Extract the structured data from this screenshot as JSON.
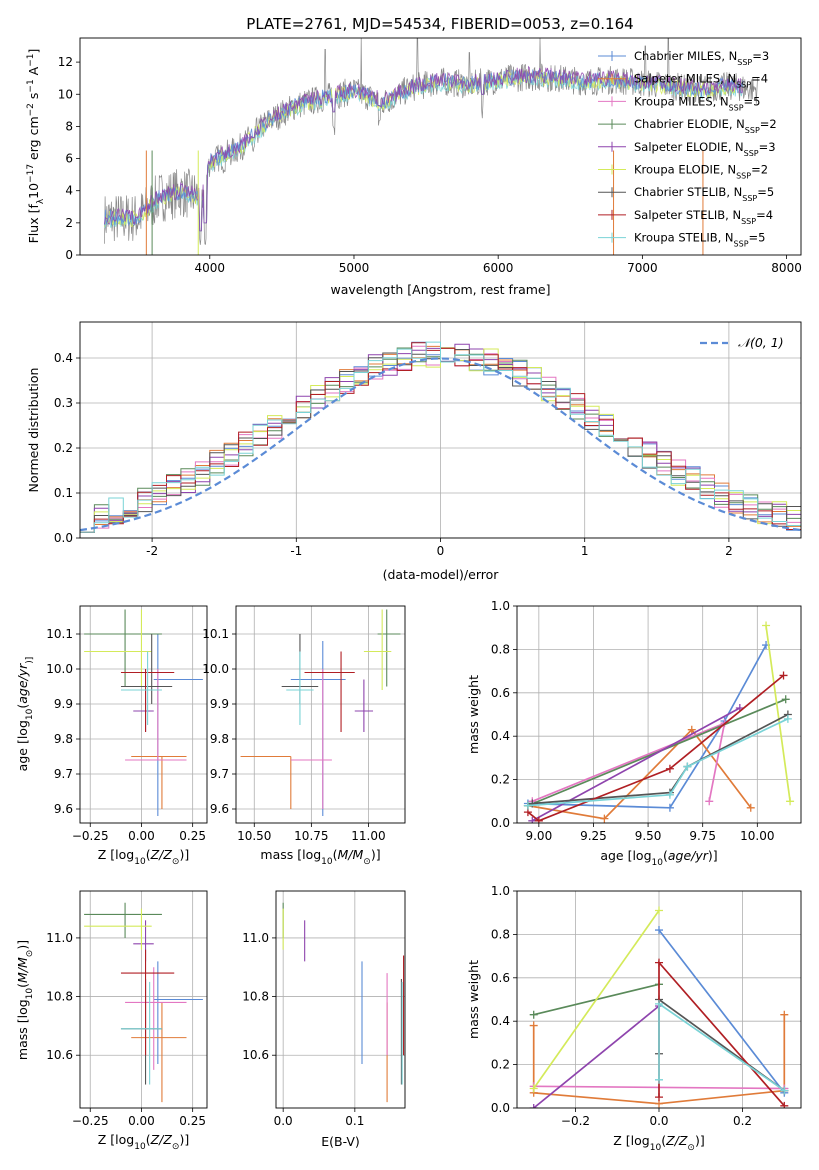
{
  "figure_title": "PLATE=2761, MJD=54534, FIBERID=0053, z=0.164",
  "colors": {
    "chabrier_miles": "#5b8bd6",
    "salpeter_miles": "#e07b39",
    "kroupa_miles": "#e377c2",
    "chabrier_elodie": "#5a8a5a",
    "salpeter_elodie": "#8e44ad",
    "kroupa_elodie": "#d4ea5a",
    "chabrier_stelib": "#555555",
    "salpeter_stelib": "#b01f24",
    "kroupa_stelib": "#7ad3d6",
    "spectrum": "#888888",
    "normal": "#5b8bd6"
  },
  "legend_series": [
    {
      "name": "Chabrier MILES, N$_{SSP}$=3",
      "label": "Chabrier MILES, N",
      "sub": "SSP",
      "eq": "=3",
      "color_key": "chabrier_miles"
    },
    {
      "name": "Salpeter MILES, N$_{SSP}$=4",
      "label": "Salpeter MILES, N",
      "sub": "SSP",
      "eq": "=4",
      "color_key": "salpeter_miles"
    },
    {
      "name": "Kroupa MILES, N$_{SSP}$=5",
      "label": "Kroupa MILES, N",
      "sub": "SSP",
      "eq": "=5",
      "color_key": "kroupa_miles"
    },
    {
      "name": "Chabrier ELODIE, N$_{SSP}$=2",
      "label": "Chabrier ELODIE, N",
      "sub": "SSP",
      "eq": "=2",
      "color_key": "chabrier_elodie"
    },
    {
      "name": "Salpeter ELODIE, N$_{SSP}$=3",
      "label": "Salpeter ELODIE, N",
      "sub": "SSP",
      "eq": "=3",
      "color_key": "salpeter_elodie"
    },
    {
      "name": "Kroupa ELODIE, N$_{SSP}$=2",
      "label": "Kroupa ELODIE, N",
      "sub": "SSP",
      "eq": "=2",
      "color_key": "kroupa_elodie"
    },
    {
      "name": "Chabrier STELIB, N$_{SSP}$=5",
      "label": "Chabrier STELIB, N",
      "sub": "SSP",
      "eq": "=5",
      "color_key": "chabrier_stelib"
    },
    {
      "name": "Salpeter STELIB, N$_{SSP}$=4",
      "label": "Salpeter STELIB, N",
      "sub": "SSP",
      "eq": "=4",
      "color_key": "salpeter_stelib"
    },
    {
      "name": "Kroupa STELIB, N$_{SSP}$=5",
      "label": "Kroupa STELIB, N",
      "sub": "SSP",
      "eq": "=5",
      "color_key": "kroupa_stelib"
    }
  ],
  "chart_data": [
    {
      "id": "spectrum",
      "type": "line",
      "xlabel": "wavelength [Angstrom, rest frame]",
      "ylabel": "Flux [f$_\\lambda$10$^{-17}$ erg cm$^{-2}$ s$^{-1}$ A$^{-1}$]",
      "ylabel_parts": [
        "Flux [f",
        "λ",
        "10",
        "−17",
        " erg cm",
        "−2",
        " s",
        "−1",
        " A",
        "−1",
        "]"
      ],
      "xlim": [
        3100,
        8100
      ],
      "ylim": [
        0,
        13.5
      ],
      "xticks": [
        4000,
        5000,
        6000,
        7000,
        8000
      ],
      "yticks": [
        0,
        2,
        4,
        6,
        8,
        10,
        12
      ],
      "grid": false,
      "legend_position": "upper right",
      "spectrum_envelope": {
        "x": [
          3270,
          3500,
          3650,
          3800,
          3950,
          4000,
          4200,
          4400,
          4600,
          4800,
          5000,
          5200,
          5400,
          5600,
          5800,
          6000,
          6200,
          6400,
          6600,
          6800,
          7000,
          7200,
          7400,
          7600,
          7800
        ],
        "y": [
          2.3,
          2.3,
          3.6,
          3.9,
          3.6,
          5.8,
          6.6,
          8.3,
          9.3,
          9.8,
          10.2,
          9.5,
          10.4,
          10.8,
          10.6,
          10.9,
          11.1,
          11.0,
          10.8,
          10.9,
          10.7,
          10.5,
          10.3,
          10.5,
          10.3
        ]
      },
      "absorption_dips": [
        {
          "x": 3934,
          "y": 0.0
        },
        {
          "x": 3969,
          "y": 0.5
        },
        {
          "x": 4101,
          "y": 5.0
        },
        {
          "x": 4304,
          "y": 5.8
        },
        {
          "x": 4861,
          "y": 7.4
        },
        {
          "x": 5175,
          "y": 7.8
        },
        {
          "x": 5270,
          "y": 9.0
        },
        {
          "x": 5890,
          "y": 8.5
        }
      ],
      "spikes": [
        {
          "x": 4800,
          "y": 12.8
        },
        {
          "x": 5050,
          "y": 13.5
        },
        {
          "x": 5440,
          "y": 13.5
        },
        {
          "x": 5800,
          "y": 12.6
        },
        {
          "x": 6290,
          "y": 13.5
        },
        {
          "x": 7020,
          "y": 13.0
        },
        {
          "x": 7180,
          "y": 13.5
        }
      ]
    },
    {
      "id": "residual_histogram",
      "type": "bar",
      "xlabel": "(data-model)/error",
      "ylabel": "Normed distribution",
      "xlim": [
        -2.5,
        2.5
      ],
      "ylim": [
        0,
        0.48
      ],
      "xticks": [
        -2,
        -1,
        0,
        1,
        2
      ],
      "yticks": [
        0.0,
        0.1,
        0.2,
        0.3,
        0.4
      ],
      "grid": true,
      "legend_position": "upper right",
      "legend": [
        "$\\mathcal{N}(0,1)$"
      ],
      "legend_text": "𝒩(0, 1)",
      "bin_width": 0.1,
      "bin_start": -2.5,
      "approx_note_free": true
    },
    {
      "id": "age_vs_metallicity",
      "type": "scatter",
      "xlabel_parts": [
        "Z [log",
        "10",
        "(",
        "Z/Z",
        "⊙",
        ")]"
      ],
      "ylabel_parts": [
        "age  [log",
        "10",
        "(",
        "age/yr",
        ")]"
      ],
      "xlim": [
        -0.3,
        0.32
      ],
      "ylim": [
        9.56,
        10.18
      ],
      "xticks": [
        -0.25,
        0.0,
        0.25
      ],
      "xtick_labels": [
        "−0.25",
        "0.00",
        "0.25"
      ],
      "yticks": [
        9.6,
        9.7,
        9.8,
        9.9,
        10.0,
        10.1
      ],
      "grid": true,
      "points": [
        {
          "series": "chabrier_miles",
          "x": 0.08,
          "y": 9.97,
          "xerr": [
            0.0,
            0.0
          ],
          "yerr": [
            0.0,
            0.0
          ],
          "xlo": 0.06,
          "xhi": 0.3,
          "ylo": 9.58,
          "yhi": 10.1
        },
        {
          "series": "salpeter_miles",
          "x": 0.1,
          "y": 9.75,
          "xlo": -0.05,
          "xhi": 0.22,
          "ylo": 9.6,
          "yhi": 9.75
        },
        {
          "series": "kroupa_miles",
          "x": 0.08,
          "y": 9.74,
          "xlo": -0.08,
          "xhi": 0.22,
          "ylo": 9.74,
          "yhi": 10.0
        },
        {
          "series": "chabrier_elodie",
          "x": -0.08,
          "y": 10.1,
          "xlo": -0.28,
          "xhi": 0.1,
          "ylo": 9.95,
          "yhi": 10.17
        },
        {
          "series": "salpeter_elodie",
          "x": 0.02,
          "y": 9.88,
          "xlo": -0.04,
          "xhi": 0.06,
          "ylo": 9.82,
          "yhi": 9.94
        },
        {
          "series": "kroupa_elodie",
          "x": 0.0,
          "y": 10.05,
          "xlo": -0.28,
          "xhi": 0.05,
          "ylo": 9.95,
          "yhi": 10.17
        },
        {
          "series": "chabrier_stelib",
          "x": 0.05,
          "y": 9.95,
          "xlo": -0.1,
          "xhi": 0.15,
          "ylo": 9.9,
          "yhi": 10.1
        },
        {
          "series": "salpeter_stelib",
          "x": 0.02,
          "y": 9.99,
          "xlo": -0.1,
          "xhi": 0.16,
          "ylo": 9.82,
          "yhi": 10.0
        },
        {
          "series": "kroupa_stelib",
          "x": 0.03,
          "y": 9.94,
          "xlo": -0.1,
          "xhi": 0.1,
          "ylo": 9.84,
          "yhi": 10.05
        }
      ]
    },
    {
      "id": "age_vs_mass",
      "type": "scatter",
      "xlabel_parts": [
        "mass [log",
        "10",
        "(",
        "M/M",
        "⊙",
        ")]"
      ],
      "xlim": [
        10.42,
        11.16
      ],
      "ylim": [
        9.56,
        10.18
      ],
      "xticks": [
        10.5,
        10.75,
        11.0
      ],
      "xtick_labels": [
        "10.50",
        "10.75",
        "11.00"
      ],
      "yticks": [
        9.6,
        9.7,
        9.8,
        9.9,
        10.0,
        10.1
      ],
      "grid": true,
      "points": [
        {
          "series": "chabrier_miles",
          "x": 10.8,
          "y": 9.97,
          "xlo": 10.66,
          "xhi": 10.9,
          "ylo": 9.58,
          "yhi": 10.08
        },
        {
          "series": "salpeter_miles",
          "x": 10.66,
          "y": 9.75,
          "xlo": 10.44,
          "xhi": 10.66,
          "ylo": 9.6,
          "yhi": 9.75
        },
        {
          "series": "kroupa_miles",
          "x": 10.8,
          "y": 9.74,
          "xlo": 10.66,
          "xhi": 10.84,
          "ylo": 9.6,
          "yhi": 10.0
        },
        {
          "series": "chabrier_elodie",
          "x": 11.08,
          "y": 10.1,
          "xlo": 11.04,
          "xhi": 11.14,
          "ylo": 9.95,
          "yhi": 10.17
        },
        {
          "series": "salpeter_elodie",
          "x": 10.98,
          "y": 9.88,
          "xlo": 10.94,
          "xhi": 11.02,
          "ylo": 9.82,
          "yhi": 9.97
        },
        {
          "series": "kroupa_elodie",
          "x": 11.06,
          "y": 10.05,
          "xlo": 10.98,
          "xhi": 11.1,
          "ylo": 9.94,
          "yhi": 10.17
        },
        {
          "series": "chabrier_stelib",
          "x": 10.7,
          "y": 9.95,
          "xlo": 10.62,
          "xhi": 10.78,
          "ylo": 9.9,
          "yhi": 10.1
        },
        {
          "series": "salpeter_stelib",
          "x": 10.88,
          "y": 9.99,
          "xlo": 10.72,
          "xhi": 10.94,
          "ylo": 9.82,
          "yhi": 10.05
        },
        {
          "series": "kroupa_stelib",
          "x": 10.7,
          "y": 9.94,
          "xlo": 10.64,
          "xhi": 10.76,
          "ylo": 9.84,
          "yhi": 10.05
        }
      ]
    },
    {
      "id": "weight_vs_age",
      "type": "line",
      "xlabel_parts": [
        "age  [log",
        "10",
        "(",
        "age/yr",
        ")]"
      ],
      "ylabel": "mass weight",
      "xlim": [
        8.9,
        10.2
      ],
      "ylim": [
        0.0,
        1.0
      ],
      "xticks": [
        9.0,
        9.25,
        9.5,
        9.75,
        10.0
      ],
      "xtick_labels": [
        "9.00",
        "9.25",
        "9.50",
        "9.75",
        "10.00"
      ],
      "yticks": [
        0.0,
        0.2,
        0.4,
        0.6,
        0.8,
        1.0
      ],
      "grid": true,
      "series": [
        {
          "series": "chabrier_miles",
          "x": [
            8.95,
            9.6,
            9.85,
            10.04
          ],
          "y": [
            0.09,
            0.07,
            0.47,
            0.82
          ]
        },
        {
          "series": "salpeter_miles",
          "x": [
            8.95,
            9.3,
            9.7,
            9.97
          ],
          "y": [
            0.08,
            0.02,
            0.43,
            0.07
          ]
        },
        {
          "series": "kroupa_miles",
          "x": [
            8.97,
            9.85,
            9.78
          ],
          "y": [
            0.1,
            0.46,
            0.1
          ]
        },
        {
          "series": "chabrier_elodie",
          "x": [
            8.95,
            10.13
          ],
          "y": [
            0.08,
            0.57
          ]
        },
        {
          "series": "salpeter_elodie",
          "x": [
            8.97,
            9.92
          ],
          "y": [
            0.01,
            0.53
          ]
        },
        {
          "series": "kroupa_elodie",
          "x": [
            10.04,
            10.15
          ],
          "y": [
            0.91,
            0.1
          ]
        },
        {
          "series": "chabrier_stelib",
          "x": [
            8.97,
            9.6,
            9.68,
            10.14
          ],
          "y": [
            0.09,
            0.14,
            0.26,
            0.5
          ]
        },
        {
          "series": "salpeter_stelib",
          "x": [
            8.95,
            9.0,
            9.6,
            10.12
          ],
          "y": [
            0.05,
            0.01,
            0.25,
            0.68
          ]
        },
        {
          "series": "kroupa_stelib",
          "x": [
            8.95,
            9.6,
            9.68,
            10.14
          ],
          "y": [
            0.08,
            0.13,
            0.26,
            0.48
          ]
        }
      ]
    },
    {
      "id": "mass_vs_metallicity",
      "type": "scatter",
      "xlabel_parts": [
        "Z [log",
        "10",
        "(",
        "Z/Z",
        "⊙",
        ")]"
      ],
      "ylabel_parts": [
        "mass [log",
        "10",
        "(",
        "M/M",
        "⊙",
        ")]"
      ],
      "xlim": [
        -0.3,
        0.32
      ],
      "ylim": [
        10.42,
        11.16
      ],
      "xticks": [
        -0.25,
        0.0,
        0.25
      ],
      "xtick_labels": [
        "−0.25",
        "0.00",
        "0.25"
      ],
      "yticks": [
        10.6,
        10.8,
        11.0
      ],
      "grid": true,
      "points": [
        {
          "series": "chabrier_miles",
          "x": 0.08,
          "y": 10.79,
          "xlo": 0.06,
          "xhi": 0.3,
          "ylo": 10.57,
          "yhi": 10.92
        },
        {
          "series": "salpeter_miles",
          "x": 0.1,
          "y": 10.66,
          "xlo": -0.05,
          "xhi": 0.22,
          "ylo": 10.44,
          "yhi": 10.78
        },
        {
          "series": "kroupa_miles",
          "x": 0.06,
          "y": 10.78,
          "xlo": -0.08,
          "xhi": 0.22,
          "ylo": 10.55,
          "yhi": 10.9
        },
        {
          "series": "chabrier_elodie",
          "x": -0.08,
          "y": 11.08,
          "xlo": -0.28,
          "xhi": 0.1,
          "ylo": 11.0,
          "yhi": 11.12
        },
        {
          "series": "salpeter_elodie",
          "x": 0.02,
          "y": 10.98,
          "xlo": -0.04,
          "xhi": 0.06,
          "ylo": 10.92,
          "yhi": 11.06
        },
        {
          "series": "kroupa_elodie",
          "x": 0.0,
          "y": 11.04,
          "xlo": -0.28,
          "xhi": 0.05,
          "ylo": 10.96,
          "yhi": 11.1
        },
        {
          "series": "chabrier_stelib",
          "x": 0.02,
          "y": 10.69,
          "xlo": -0.1,
          "xhi": 0.1,
          "ylo": 10.5,
          "yhi": 10.86
        },
        {
          "series": "salpeter_stelib",
          "x": 0.02,
          "y": 10.88,
          "xlo": -0.1,
          "xhi": 0.16,
          "ylo": 10.6,
          "yhi": 10.96
        },
        {
          "series": "kroupa_stelib",
          "x": 0.04,
          "y": 10.69,
          "xlo": -0.1,
          "xhi": 0.1,
          "ylo": 10.5,
          "yhi": 10.85
        }
      ]
    },
    {
      "id": "mass_vs_ebv",
      "type": "scatter",
      "xlabel": "E(B-V)",
      "xlim": [
        -0.01,
        0.17
      ],
      "ylim": [
        10.42,
        11.16
      ],
      "xticks": [
        0.0,
        0.1
      ],
      "xtick_labels": [
        "0.0",
        "0.1"
      ],
      "yticks": [
        10.6,
        10.8,
        11.0
      ],
      "grid": true,
      "points": [
        {
          "series": "chabrier_miles",
          "x": 0.11,
          "y": 10.79,
          "ylo": 10.57,
          "yhi": 10.92
        },
        {
          "series": "salpeter_miles",
          "x": 0.145,
          "y": 10.66,
          "ylo": 10.44,
          "yhi": 10.78
        },
        {
          "series": "kroupa_miles",
          "x": 0.145,
          "y": 10.78,
          "ylo": 10.6,
          "yhi": 10.88
        },
        {
          "series": "chabrier_elodie",
          "x": 0.0,
          "y": 11.08,
          "ylo": 11.0,
          "yhi": 11.12
        },
        {
          "series": "salpeter_elodie",
          "x": 0.03,
          "y": 10.98,
          "ylo": 10.92,
          "yhi": 11.06
        },
        {
          "series": "kroupa_elodie",
          "x": 0.0,
          "y": 11.04,
          "ylo": 10.96,
          "yhi": 11.1
        },
        {
          "series": "chabrier_stelib",
          "x": 0.165,
          "y": 10.69,
          "ylo": 10.5,
          "yhi": 10.86
        },
        {
          "series": "salpeter_stelib",
          "x": 0.168,
          "y": 10.88,
          "ylo": 10.6,
          "yhi": 10.94
        },
        {
          "series": "kroupa_stelib",
          "x": 0.166,
          "y": 10.69,
          "ylo": 10.5,
          "yhi": 10.85
        }
      ]
    },
    {
      "id": "weight_vs_metallicity",
      "type": "line",
      "xlabel_parts": [
        "Z [log",
        "10",
        "(",
        "Z/Z",
        "⊙",
        ")]"
      ],
      "ylabel": "mass weight",
      "xlim": [
        -0.34,
        0.34
      ],
      "ylim": [
        0.0,
        1.0
      ],
      "xticks": [
        -0.2,
        0.0,
        0.2
      ],
      "xtick_labels": [
        "−0.2",
        "0.0",
        "0.2"
      ],
      "yticks": [
        0.0,
        0.2,
        0.4,
        0.6,
        0.8,
        1.0
      ],
      "grid": true,
      "series": [
        {
          "series": "chabrier_miles",
          "x": [
            0.0,
            0.3,
            0.3
          ],
          "y": [
            0.82,
            0.07,
            0.09
          ]
        },
        {
          "series": "salpeter_miles",
          "x": [
            -0.3,
            -0.3,
            0.0,
            0.3,
            0.3
          ],
          "y": [
            0.38,
            0.07,
            0.02,
            0.08,
            0.43
          ]
        },
        {
          "series": "kroupa_miles",
          "x": [
            -0.3,
            0.3
          ],
          "y": [
            0.1,
            0.09
          ]
        },
        {
          "series": "chabrier_elodie",
          "x": [
            -0.3,
            0.0
          ],
          "y": [
            0.43,
            0.57
          ]
        },
        {
          "series": "salpeter_elodie",
          "x": [
            -0.3,
            0.0
          ],
          "y": [
            0.0,
            0.47
          ]
        },
        {
          "series": "kroupa_elodie",
          "x": [
            -0.3,
            0.0
          ],
          "y": [
            0.09,
            0.91
          ]
        },
        {
          "series": "chabrier_stelib",
          "x": [
            0.0,
            0.0,
            0.3
          ],
          "y": [
            0.25,
            0.5,
            0.08
          ]
        },
        {
          "series": "salpeter_stelib",
          "x": [
            0.0,
            0.0,
            0.3
          ],
          "y": [
            0.05,
            0.67,
            0.01
          ]
        },
        {
          "series": "kroupa_stelib",
          "x": [
            0.0,
            0.0,
            0.3
          ],
          "y": [
            0.13,
            0.48,
            0.08
          ]
        }
      ]
    }
  ]
}
